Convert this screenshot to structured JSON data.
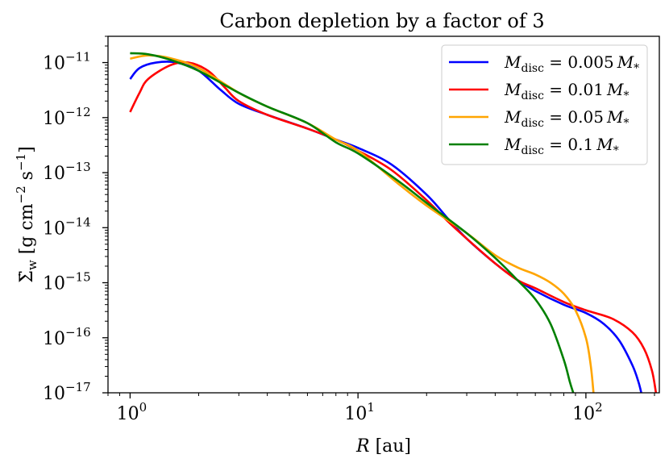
{
  "chart_data": {
    "type": "line",
    "title": "Carbon depletion by a factor of 3",
    "xlabel": {
      "var": "R",
      "unit": "[au]"
    },
    "ylabel": {
      "var": "Σ̇",
      "sub": "w",
      "unit_open": "[g cm",
      "exp1": "−2",
      "mid": " s",
      "exp2": "−1",
      "unit_close": "]"
    },
    "xscale": "log",
    "yscale": "log",
    "xlim": [
      0.8,
      210
    ],
    "ylim": [
      1e-17,
      3e-11
    ],
    "x_ticks": [
      {
        "value": 1,
        "base": "10",
        "exp": "0"
      },
      {
        "value": 10,
        "base": "10",
        "exp": "1"
      },
      {
        "value": 100,
        "base": "10",
        "exp": "2"
      }
    ],
    "y_ticks": [
      {
        "value": 1e-11,
        "base": "10",
        "exp": "−11"
      },
      {
        "value": 1e-12,
        "base": "10",
        "exp": "−12"
      },
      {
        "value": 1e-13,
        "base": "10",
        "exp": "−13"
      },
      {
        "value": 1e-14,
        "base": "10",
        "exp": "−14"
      },
      {
        "value": 1e-15,
        "base": "10",
        "exp": "−15"
      },
      {
        "value": 1e-16,
        "base": "10",
        "exp": "−16"
      },
      {
        "value": 1e-17,
        "base": "10",
        "exp": "−17"
      }
    ],
    "legend_position": "top-right",
    "series": [
      {
        "name": "M_disc = 0.005 M_*",
        "label_parts": {
          "m": "M",
          "sub": "disc",
          "eq": " = 0.005",
          "star": "M",
          "star_sub": "*"
        },
        "color": "#0000ff",
        "points": [
          [
            1.0,
            -11.3
          ],
          [
            1.1,
            -11.1
          ],
          [
            1.3,
            -11.0
          ],
          [
            1.6,
            -11.0
          ],
          [
            2.0,
            -11.15
          ],
          [
            2.5,
            -11.5
          ],
          [
            3.0,
            -11.75
          ],
          [
            4.0,
            -11.95
          ],
          [
            6.0,
            -12.2
          ],
          [
            8.0,
            -12.4
          ],
          [
            10.0,
            -12.55
          ],
          [
            14.0,
            -12.85
          ],
          [
            20.0,
            -13.4
          ],
          [
            25.0,
            -13.85
          ],
          [
            30.0,
            -14.2
          ],
          [
            40.0,
            -14.65
          ],
          [
            50.0,
            -14.95
          ],
          [
            60.0,
            -15.15
          ],
          [
            80.0,
            -15.4
          ],
          [
            100.0,
            -15.55
          ],
          [
            120.0,
            -15.75
          ],
          [
            140.0,
            -16.05
          ],
          [
            160.0,
            -16.5
          ],
          [
            170.0,
            -16.8
          ],
          [
            175.0,
            -17.0
          ]
        ]
      },
      {
        "name": "M_disc = 0.01 M_*",
        "label_parts": {
          "m": "M",
          "sub": "disc",
          "eq": " = 0.01",
          "star": "M",
          "star_sub": "*"
        },
        "color": "#ff0000",
        "points": [
          [
            1.0,
            -11.9
          ],
          [
            1.1,
            -11.55
          ],
          [
            1.2,
            -11.3
          ],
          [
            1.5,
            -11.05
          ],
          [
            1.8,
            -11.0
          ],
          [
            2.2,
            -11.15
          ],
          [
            2.6,
            -11.45
          ],
          [
            3.0,
            -11.7
          ],
          [
            4.0,
            -11.95
          ],
          [
            6.0,
            -12.2
          ],
          [
            8.0,
            -12.4
          ],
          [
            10.0,
            -12.6
          ],
          [
            14.0,
            -12.95
          ],
          [
            20.0,
            -13.5
          ],
          [
            25.0,
            -13.9
          ],
          [
            30.0,
            -14.2
          ],
          [
            40.0,
            -14.65
          ],
          [
            50.0,
            -14.95
          ],
          [
            60.0,
            -15.1
          ],
          [
            80.0,
            -15.35
          ],
          [
            100.0,
            -15.5
          ],
          [
            130.0,
            -15.65
          ],
          [
            160.0,
            -15.9
          ],
          [
            180.0,
            -16.2
          ],
          [
            195.0,
            -16.6
          ],
          [
            203.0,
            -17.0
          ]
        ]
      },
      {
        "name": "M_disc = 0.05 M_*",
        "label_parts": {
          "m": "M",
          "sub": "disc",
          "eq": " = 0.05",
          "star": "M",
          "star_sub": "*"
        },
        "color": "#ffa500",
        "points": [
          [
            1.0,
            -10.93
          ],
          [
            1.2,
            -10.87
          ],
          [
            1.5,
            -10.92
          ],
          [
            2.0,
            -11.1
          ],
          [
            3.0,
            -11.55
          ],
          [
            4.0,
            -11.8
          ],
          [
            6.0,
            -12.1
          ],
          [
            8.0,
            -12.4
          ],
          [
            10.0,
            -12.6
          ],
          [
            15.0,
            -13.2
          ],
          [
            20.0,
            -13.6
          ],
          [
            30.0,
            -14.1
          ],
          [
            40.0,
            -14.5
          ],
          [
            50.0,
            -14.72
          ],
          [
            60.0,
            -14.85
          ],
          [
            70.0,
            -15.0
          ],
          [
            80.0,
            -15.2
          ],
          [
            90.0,
            -15.5
          ],
          [
            100.0,
            -16.0
          ],
          [
            105.0,
            -16.5
          ],
          [
            108.0,
            -17.0
          ]
        ]
      },
      {
        "name": "M_disc = 0.1 M_*",
        "label_parts": {
          "m": "M",
          "sub": "disc",
          "eq": " = 0.1",
          "star": "M",
          "star_sub": "*"
        },
        "color": "#008000",
        "points": [
          [
            1.0,
            -10.83
          ],
          [
            1.2,
            -10.85
          ],
          [
            1.5,
            -10.95
          ],
          [
            2.0,
            -11.15
          ],
          [
            3.0,
            -11.55
          ],
          [
            4.0,
            -11.8
          ],
          [
            6.0,
            -12.1
          ],
          [
            8.0,
            -12.45
          ],
          [
            10.0,
            -12.65
          ],
          [
            15.0,
            -13.15
          ],
          [
            20.0,
            -13.55
          ],
          [
            30.0,
            -14.1
          ],
          [
            40.0,
            -14.55
          ],
          [
            50.0,
            -14.95
          ],
          [
            60.0,
            -15.3
          ],
          [
            70.0,
            -15.75
          ],
          [
            80.0,
            -16.4
          ],
          [
            85.0,
            -16.8
          ],
          [
            88.0,
            -17.0
          ]
        ]
      }
    ]
  }
}
